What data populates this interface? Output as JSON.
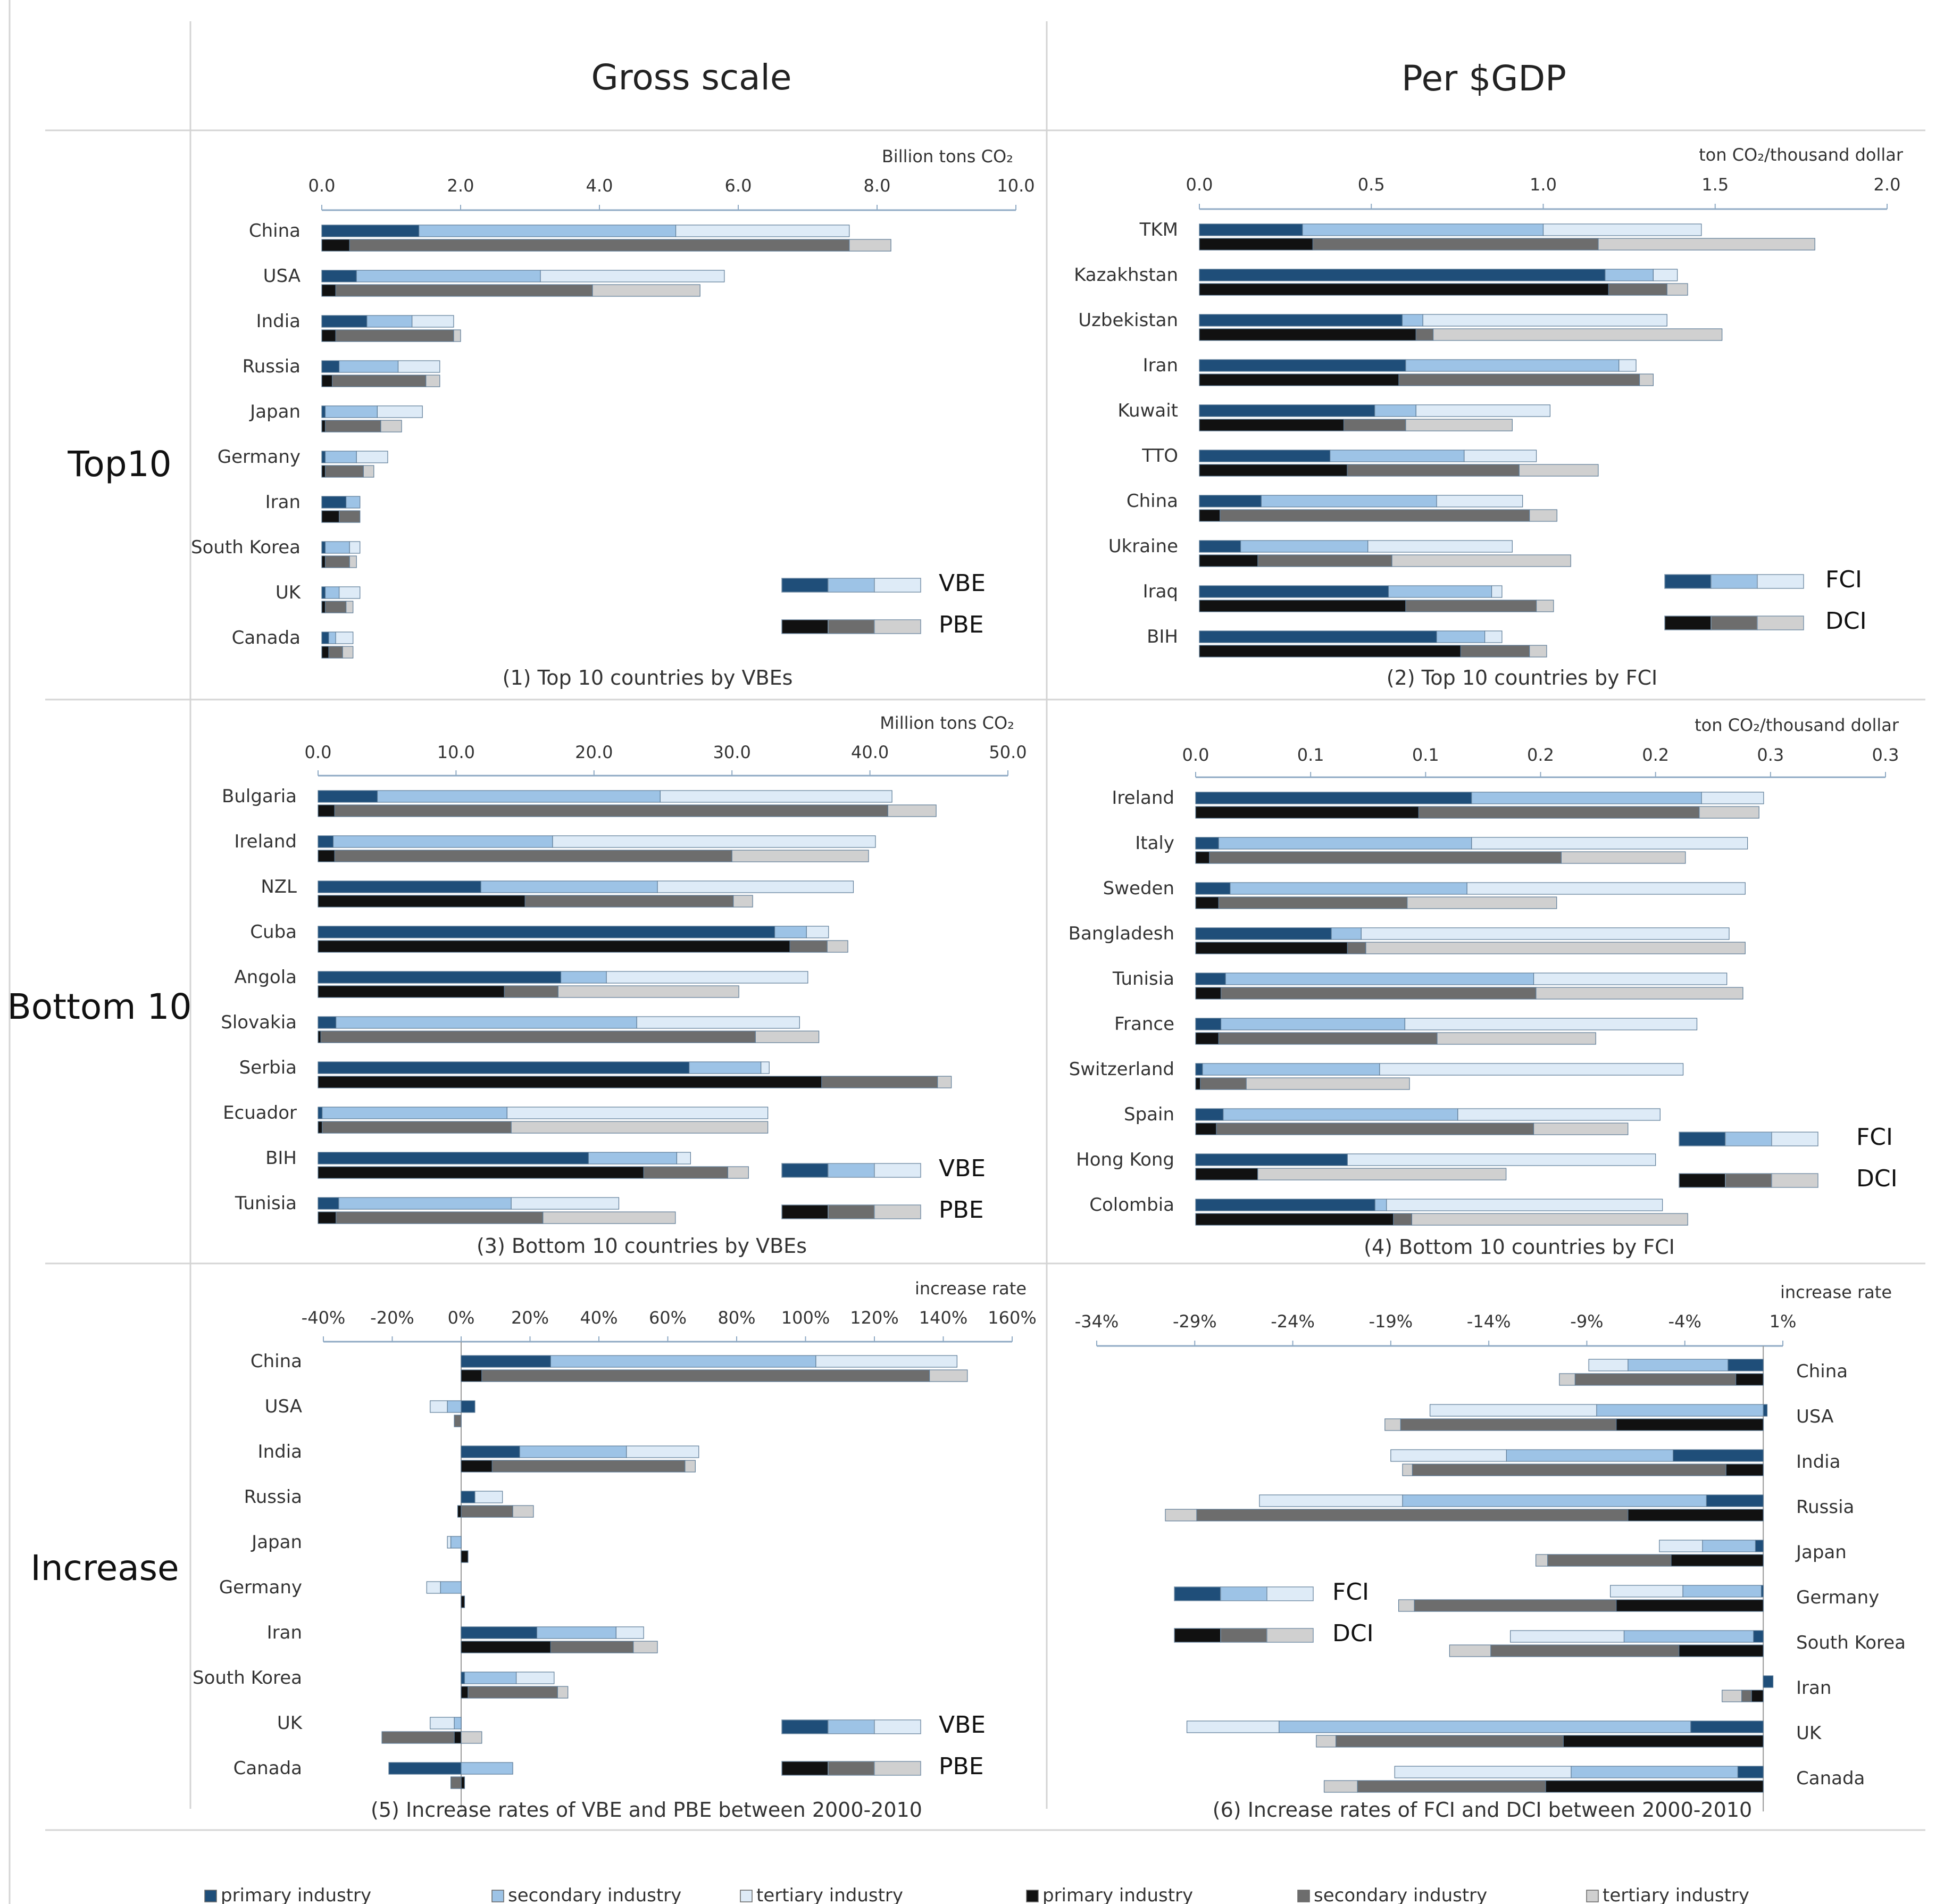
{
  "headers": {
    "col1": "Gross scale",
    "col2": "Per $GDP"
  },
  "rows": {
    "top": "Top10",
    "bottom": "Bottom 10",
    "increase": "Increase"
  },
  "colors": {
    "vbe": [
      "#1f4e79",
      "#9dc3e6",
      "#deebf7"
    ],
    "pbe": [
      "#111111",
      "#6d6d6d",
      "#d0d0d0"
    ],
    "axis": "#8faac4"
  },
  "footer": {
    "items": [
      {
        "label": "primary industry",
        "color": "#1f4e79"
      },
      {
        "label": "secondary industry",
        "color": "#9dc3e6"
      },
      {
        "label": "tertiary industry",
        "color": "#deebf7"
      },
      {
        "label": "primary industry",
        "color": "#111111"
      },
      {
        "label": "secondary industry",
        "color": "#6d6d6d"
      },
      {
        "label": "tertiary industry",
        "color": "#d0d0d0"
      }
    ]
  },
  "chart_data": [
    {
      "id": "p1",
      "type": "bar",
      "orientation": "horizontal",
      "stacked": true,
      "title": "(1) Top 10 countries by VBEs",
      "unit": "Billion tons CO₂",
      "xlim": [
        0,
        10
      ],
      "ticks": [
        "0.0",
        "2.0",
        "4.0",
        "6.0",
        "8.0",
        "10.0"
      ],
      "legend": [
        "VBE",
        "PBE"
      ],
      "legendKeys": [
        "vbe",
        "pbe"
      ],
      "categories": [
        "China",
        "USA",
        "India",
        "Russia",
        "Japan",
        "Germany",
        "Iran",
        "South Korea",
        "UK",
        "Canada"
      ],
      "series": [
        {
          "name": "VBE",
          "key": "vbe",
          "values": [
            [
              1.4,
              3.7,
              2.5
            ],
            [
              0.5,
              2.65,
              2.65
            ],
            [
              0.65,
              0.65,
              0.6
            ],
            [
              0.25,
              0.85,
              0.6
            ],
            [
              0.05,
              0.75,
              0.65
            ],
            [
              0.05,
              0.45,
              0.45
            ],
            [
              0.35,
              0.2,
              0
            ],
            [
              0.05,
              0.35,
              0.15
            ],
            [
              0.05,
              0.2,
              0.3
            ],
            [
              0.1,
              0.1,
              0.25
            ]
          ]
        },
        {
          "name": "PBE",
          "key": "pbe",
          "values": [
            [
              0.4,
              7.2,
              0.6
            ],
            [
              0.2,
              3.7,
              1.55
            ],
            [
              0.2,
              1.7,
              0.1
            ],
            [
              0.15,
              1.35,
              0.2
            ],
            [
              0.05,
              0.8,
              0.3
            ],
            [
              0.05,
              0.55,
              0.15
            ],
            [
              0.25,
              0.3,
              0.0
            ],
            [
              0.05,
              0.35,
              0.1
            ],
            [
              0.05,
              0.3,
              0.1
            ],
            [
              0.1,
              0.2,
              0.15
            ]
          ]
        }
      ]
    },
    {
      "id": "p2",
      "type": "bar",
      "orientation": "horizontal",
      "stacked": true,
      "title": "(2) Top 10 countries by FCI",
      "unit": "ton CO₂/thousand dollar",
      "xlim": [
        0,
        2
      ],
      "ticks": [
        "0.0",
        "0.5",
        "1.0",
        "1.5",
        "2.0"
      ],
      "legend": [
        "FCI",
        "DCI"
      ],
      "legendKeys": [
        "vbe",
        "pbe"
      ],
      "categories": [
        "TKM",
        "Kazakhstan",
        "Uzbekistan",
        "Iran",
        "Kuwait",
        "TTO",
        "China",
        "Ukraine",
        "Iraq",
        "BIH"
      ],
      "series": [
        {
          "name": "FCI",
          "key": "vbe",
          "values": [
            [
              0.3,
              0.7,
              0.46
            ],
            [
              1.18,
              0.14,
              0.07
            ],
            [
              0.59,
              0.06,
              0.71
            ],
            [
              0.6,
              0.62,
              0.05
            ],
            [
              0.51,
              0.12,
              0.39
            ],
            [
              0.38,
              0.39,
              0.21
            ],
            [
              0.18,
              0.51,
              0.25
            ],
            [
              0.12,
              0.37,
              0.42
            ],
            [
              0.55,
              0.3,
              0.03
            ],
            [
              0.69,
              0.14,
              0.05
            ]
          ]
        },
        {
          "name": "DCI",
          "key": "pbe",
          "values": [
            [
              0.33,
              0.83,
              0.63
            ],
            [
              1.19,
              0.17,
              0.06
            ],
            [
              0.63,
              0.05,
              0.84
            ],
            [
              0.58,
              0.7,
              0.04
            ],
            [
              0.42,
              0.18,
              0.31
            ],
            [
              0.43,
              0.5,
              0.23
            ],
            [
              0.06,
              0.9,
              0.08
            ],
            [
              0.17,
              0.39,
              0.52
            ],
            [
              0.6,
              0.38,
              0.05
            ],
            [
              0.76,
              0.2,
              0.05
            ]
          ]
        }
      ]
    },
    {
      "id": "p3",
      "type": "bar",
      "orientation": "horizontal",
      "stacked": true,
      "title": "(3) Bottom 10 countries by VBEs",
      "unit": "Million tons CO₂",
      "xlim": [
        0,
        50
      ],
      "ticks": [
        "0.0",
        "10.0",
        "20.0",
        "30.0",
        "40.0",
        "50.0"
      ],
      "legend": [
        "VBE",
        "PBE"
      ],
      "legendKeys": [
        "vbe",
        "pbe"
      ],
      "categories": [
        "Bulgaria",
        "Ireland",
        "NZL",
        "Cuba",
        "Angola",
        "Slovakia",
        "Serbia",
        "Ecuador",
        "BIH",
        "Tunisia"
      ],
      "series": [
        {
          "name": "VBE",
          "key": "vbe",
          "values": [
            [
              4.3,
              20.5,
              16.8
            ],
            [
              1.1,
              15.9,
              23.4
            ],
            [
              11.8,
              12.8,
              14.2
            ],
            [
              33.1,
              2.3,
              1.6
            ],
            [
              17.6,
              3.3,
              14.6
            ],
            [
              1.3,
              21.8,
              11.8
            ],
            [
              26.9,
              5.2,
              0.6
            ],
            [
              0.3,
              13.4,
              18.9
            ],
            [
              19.6,
              6.4,
              1.0
            ],
            [
              1.5,
              12.5,
              7.8
            ]
          ]
        },
        {
          "name": "PBE",
          "key": "pbe",
          "values": [
            [
              1.2,
              40.1,
              3.5
            ],
            [
              1.2,
              28.8,
              9.9
            ],
            [
              15.0,
              15.1,
              1.4
            ],
            [
              34.2,
              2.7,
              1.5
            ],
            [
              13.5,
              3.9,
              13.1
            ],
            [
              0.2,
              31.5,
              4.6
            ],
            [
              36.5,
              8.4,
              1.0
            ],
            [
              0.3,
              13.7,
              18.6
            ],
            [
              23.6,
              6.1,
              1.5
            ],
            [
              1.3,
              15.0,
              9.6
            ]
          ]
        }
      ]
    },
    {
      "id": "p4",
      "type": "bar",
      "orientation": "horizontal",
      "stacked": true,
      "title": "(4) Bottom 10 countries by FCI",
      "unit": "ton CO₂/thousand dollar",
      "xlim": [
        0,
        0.3
      ],
      "ticks": [
        "0.0",
        "0.1",
        "0.1",
        "0.2",
        "0.2",
        "0.3",
        "0.3"
      ],
      "legend": [
        "FCI",
        "DCI"
      ],
      "legendKeys": [
        "vbe",
        "pbe"
      ],
      "categories": [
        "Ireland",
        "Italy",
        "Sweden",
        "Bangladesh",
        "Tunisia",
        "France",
        "Switzerland",
        "Spain",
        "Hong Kong",
        "Colombia"
      ],
      "series": [
        {
          "name": "FCI",
          "key": "vbe",
          "values": [
            [
              0.12,
              0.1,
              0.027
            ],
            [
              0.01,
              0.11,
              0.12
            ],
            [
              0.015,
              0.103,
              0.121
            ],
            [
              0.059,
              0.013,
              0.16
            ],
            [
              0.013,
              0.134,
              0.084
            ],
            [
              0.011,
              0.08,
              0.127
            ],
            [
              0.003,
              0.077,
              0.132
            ],
            [
              0.012,
              0.102,
              0.088
            ],
            [
              0.066,
              0,
              0.134
            ],
            [
              0.078,
              0.005,
              0.12
            ]
          ]
        },
        {
          "name": "DCI",
          "key": "pbe",
          "values": [
            [
              0.097,
              0.122,
              0.026
            ],
            [
              0.006,
              0.153,
              0.054
            ],
            [
              0.01,
              0.082,
              0.065
            ],
            [
              0.066,
              0.008,
              0.165
            ],
            [
              0.011,
              0.137,
              0.09
            ],
            [
              0.01,
              0.095,
              0.069
            ],
            [
              0.002,
              0.02,
              0.071
            ],
            [
              0.009,
              0.138,
              0.041
            ],
            [
              0.027,
              0,
              0.108
            ],
            [
              0.086,
              0.008,
              0.12
            ]
          ]
        }
      ]
    },
    {
      "id": "p5",
      "type": "bar",
      "orientation": "horizontal",
      "stacked": true,
      "title": "(5) Increase rates of VBE and PBE between 2000-2010",
      "unit": "increase rate",
      "xlim": [
        -40,
        160
      ],
      "ticks": [
        "-40%",
        "-20%",
        "0%",
        "20%",
        "40%",
        "60%",
        "80%",
        "100%",
        "120%",
        "140%",
        "160%"
      ],
      "legend": [
        "VBE",
        "PBE"
      ],
      "legendKeys": [
        "vbe",
        "pbe"
      ],
      "categories": [
        "China",
        "USA",
        "India",
        "Russia",
        "Japan",
        "Germany",
        "Iran",
        "South Korea",
        "UK",
        "Canada"
      ],
      "series": [
        {
          "name": "VBE",
          "key": "vbe",
          "values": [
            [
              26,
              77,
              41
            ],
            [
              4,
              -4,
              -5
            ],
            [
              17,
              31,
              21
            ],
            [
              4,
              0,
              8
            ],
            [
              0,
              -3,
              -1
            ],
            [
              0,
              -6,
              -4
            ],
            [
              22,
              23,
              8
            ],
            [
              1,
              15,
              11
            ],
            [
              0,
              -2,
              -7
            ],
            [
              -21,
              15,
              0
            ]
          ]
        },
        {
          "name": "PBE",
          "key": "pbe",
          "values": [
            [
              6,
              130,
              11
            ],
            [
              0,
              -2,
              0
            ],
            [
              9,
              56,
              3
            ],
            [
              -1,
              15,
              6
            ],
            [
              2,
              0,
              0
            ],
            [
              1,
              0,
              0
            ],
            [
              26,
              24,
              7
            ],
            [
              2,
              26,
              3
            ],
            [
              -2,
              -21,
              6
            ],
            [
              1,
              -3,
              0
            ]
          ]
        }
      ]
    },
    {
      "id": "p6",
      "type": "bar",
      "orientation": "horizontal",
      "stacked": true,
      "title": "(6) Increase rates of FCI and DCI between 2000-2010",
      "unit": "increase rate",
      "xlim": [
        -34,
        1
      ],
      "ticks": [
        "-34%",
        "-29%",
        "-24%",
        "-19%",
        "-14%",
        "-9%",
        "-4%",
        "1%"
      ],
      "legend": [
        "FCI",
        "DCI"
      ],
      "legendKeys": [
        "vbe",
        "pbe"
      ],
      "categories": [
        "China",
        "USA",
        "India",
        "Russia",
        "Japan",
        "Germany",
        "South Korea",
        "Iran",
        "UK",
        "Canada"
      ],
      "series": [
        {
          "name": "FCI",
          "key": "vbe",
          "values": [
            [
              -1.8,
              -5.1,
              -2.0
            ],
            [
              0.2,
              -8.5,
              -8.5
            ],
            [
              -4.6,
              -8.5,
              -5.9
            ],
            [
              -2.9,
              -15.5,
              -7.3
            ],
            [
              -0.4,
              -2.7,
              -2.2
            ],
            [
              -0.1,
              -4.0,
              -3.7
            ],
            [
              -0.5,
              -6.6,
              -5.8
            ],
            [
              0.5,
              0,
              0
            ],
            [
              -3.7,
              -21.0,
              -4.7
            ],
            [
              -1.3,
              -8.5,
              -9.0
            ]
          ]
        },
        {
          "name": "DCI",
          "key": "pbe",
          "values": [
            [
              -1.4,
              -8.2,
              -0.8
            ],
            [
              -7.5,
              -11.0,
              -0.8
            ],
            [
              -1.9,
              -16.0,
              -0.5
            ],
            [
              -6.9,
              -22.0,
              -1.6
            ],
            [
              -4.7,
              -6.3,
              -0.6
            ],
            [
              -7.5,
              -10.3,
              -0.8
            ],
            [
              -4.3,
              -9.6,
              -2.1
            ],
            [
              -0.6,
              -0.5,
              -1.0
            ],
            [
              -10.2,
              -11.6,
              -1.0
            ],
            [
              -11.1,
              -9.6,
              -1.7
            ]
          ]
        }
      ]
    }
  ]
}
